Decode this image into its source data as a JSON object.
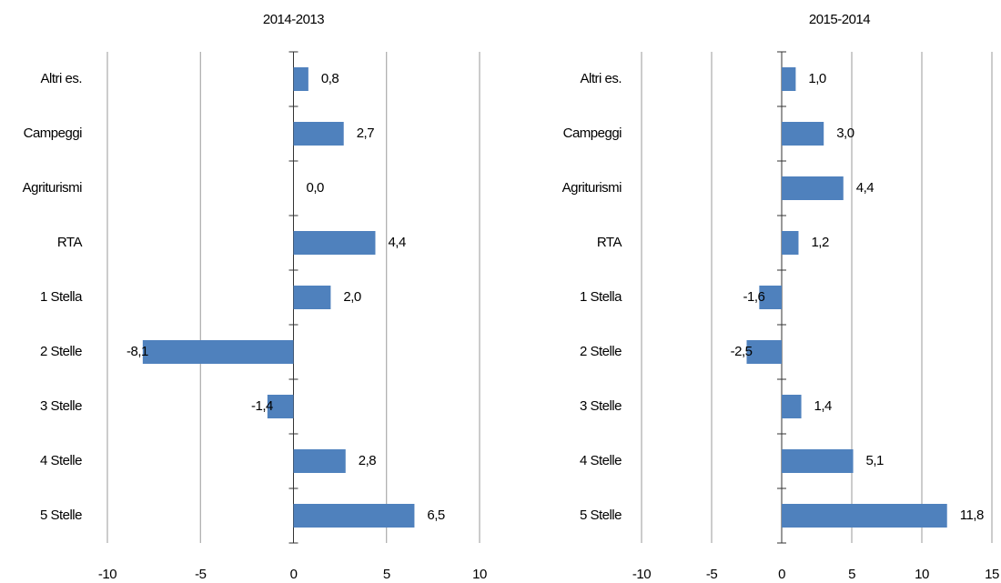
{
  "chart_data": [
    {
      "type": "bar",
      "orientation": "horizontal",
      "title": "2014-2013",
      "categories": [
        "Altri es.",
        "Campeggi",
        "Agriturismi",
        "RTA",
        "1 Stella",
        "2 Stelle",
        "3 Stelle",
        "4 Stelle",
        "5 Stelle"
      ],
      "values": [
        0.8,
        2.7,
        0.0,
        4.4,
        2.0,
        -8.1,
        -1.4,
        2.8,
        6.5
      ],
      "value_labels": [
        "0,8",
        "2,7",
        "0,0",
        "4,4",
        "2,0",
        "-8,1",
        "-1,4",
        "2,8",
        "6,5"
      ],
      "color": "#4f81bd",
      "xlim": [
        -10,
        10
      ],
      "xticks": [
        -10,
        -5,
        0,
        5,
        10
      ],
      "grid": true
    },
    {
      "type": "bar",
      "orientation": "horizontal",
      "title": "2015-2014",
      "categories": [
        "Altri es.",
        "Campeggi",
        "Agriturismi",
        "RTA",
        "1 Stella",
        "2 Stelle",
        "3 Stelle",
        "4 Stelle",
        "5 Stelle"
      ],
      "values": [
        1.0,
        3.0,
        4.4,
        1.2,
        -1.6,
        -2.5,
        1.4,
        5.1,
        11.8
      ],
      "value_labels": [
        "1,0",
        "3,0",
        "4,4",
        "1,2",
        "-1,6",
        "-2,5",
        "1,4",
        "5,1",
        "11,8"
      ],
      "color": "#4f81bd",
      "xlim": [
        -10,
        15
      ],
      "xticks": [
        -10,
        -5,
        0,
        5,
        10,
        15
      ],
      "grid": true
    }
  ]
}
